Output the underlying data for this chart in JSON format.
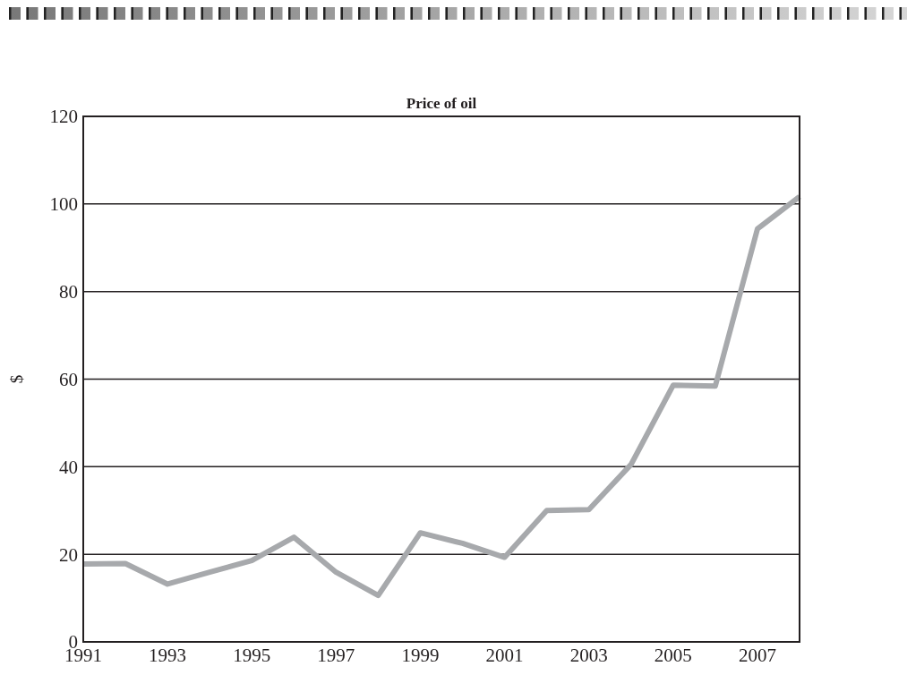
{
  "chart_data": {
    "type": "line",
    "title": "Price of oil",
    "ylabel": "$",
    "x": [
      1991,
      1992,
      1993,
      1994,
      1995,
      1996,
      1997,
      1998,
      1999,
      2000,
      2001,
      2002,
      2003,
      2004,
      2005,
      2006,
      2007,
      2008
    ],
    "series": [
      {
        "color": "#a7a9ac",
        "values": [
          17.8,
          17.9,
          13.2,
          15.9,
          18.6,
          23.9,
          15.9,
          10.6,
          24.9,
          22.5,
          19.3,
          30.0,
          30.2,
          40.5,
          58.6,
          58.4,
          94.3,
          101.7
        ]
      }
    ],
    "xlim": [
      1991,
      2008
    ],
    "xticks": [
      1991,
      1993,
      1995,
      1997,
      1999,
      2001,
      2003,
      2005,
      2007
    ],
    "ylim": [
      0,
      120
    ],
    "yticks": [
      0,
      20,
      40,
      60,
      80,
      100,
      120
    ],
    "grid": "y",
    "marker": "none",
    "line_style": "solid"
  }
}
